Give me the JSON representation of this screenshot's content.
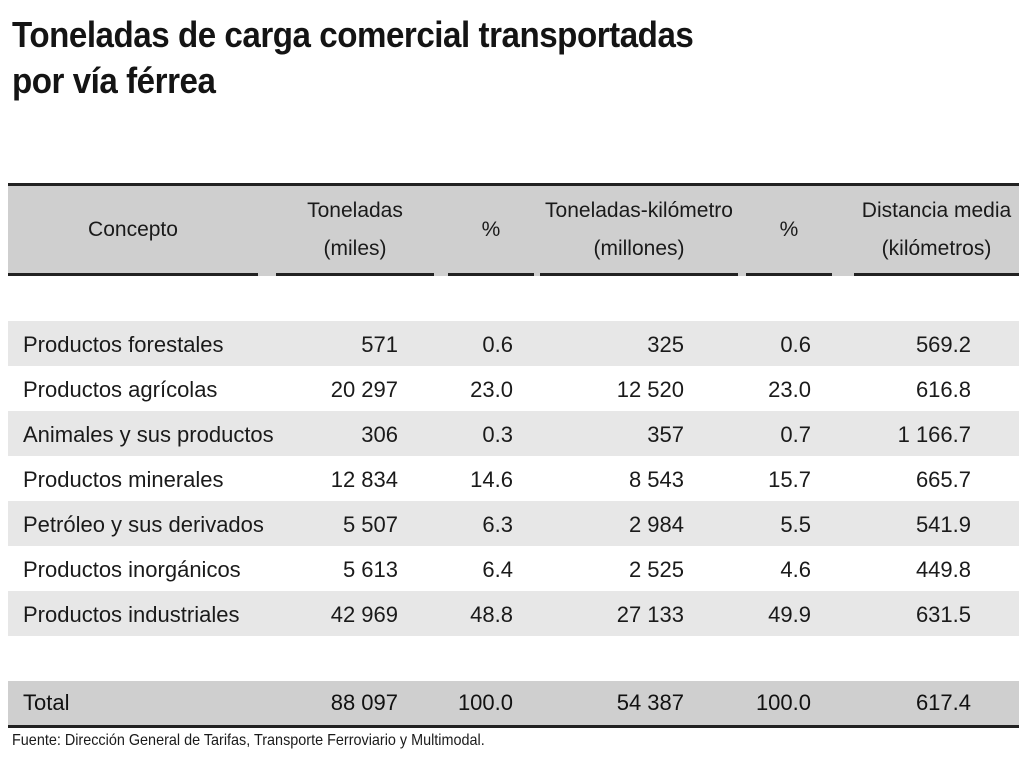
{
  "title": {
    "line1": "Toneladas de carga comercial transportadas",
    "line2": "por vía férrea"
  },
  "table": {
    "headers": [
      {
        "line1": "Concepto",
        "line2": ""
      },
      {
        "line1": "Toneladas",
        "line2": "(miles)"
      },
      {
        "line1": "%",
        "line2": ""
      },
      {
        "line1": "Toneladas-kilómetro",
        "line2": "(millones)"
      },
      {
        "line1": "%",
        "line2": ""
      },
      {
        "line1": "Distancia media",
        "line2": "(kilómetros)"
      }
    ],
    "rows": [
      [
        "Productos forestales",
        "571",
        "0.6",
        "325",
        "0.6",
        "569.2"
      ],
      [
        "Productos agrícolas",
        "20 297",
        "23.0",
        "12 520",
        "23.0",
        "616.8"
      ],
      [
        "Animales y sus productos",
        "306",
        "0.3",
        "357",
        "0.7",
        "1 166.7"
      ],
      [
        "Productos minerales",
        "12 834",
        "14.6",
        "8 543",
        "15.7",
        "665.7"
      ],
      [
        "Petróleo y sus derivados",
        "5 507",
        "6.3",
        "2 984",
        "5.5",
        "541.9"
      ],
      [
        "Productos inorgánicos",
        "5 613",
        "6.4",
        "2 525",
        "4.6",
        "449.8"
      ],
      [
        "Productos industriales",
        "42 969",
        "48.8",
        "27 133",
        "49.9",
        "631.5"
      ]
    ],
    "total": [
      "Total",
      "88 097",
      "100.0",
      "54 387",
      "100.0",
      "617.4"
    ]
  },
  "source": "Fuente: Dirección General de Tarifas, Transporte Ferroviario y Multimodal.",
  "colors": {
    "header_bg": "#cfcfcf",
    "stripe_bg": "#e7e7e7",
    "rule": "#222222"
  }
}
